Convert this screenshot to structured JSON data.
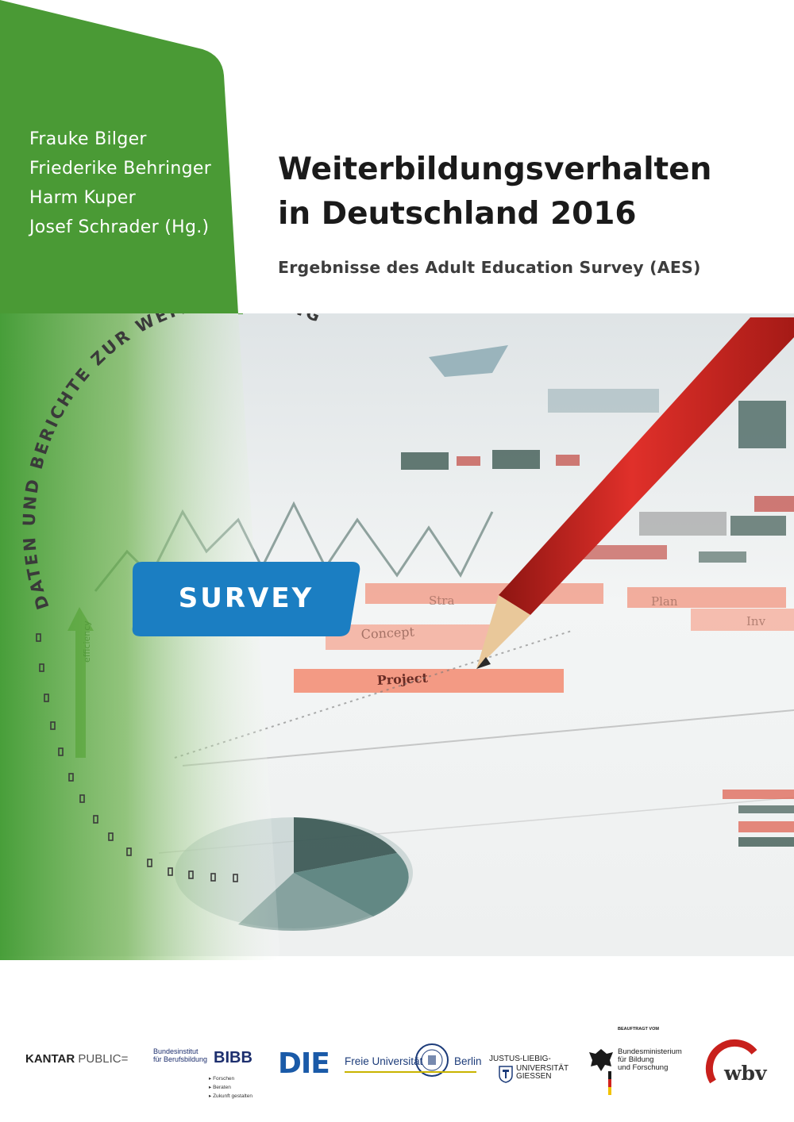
{
  "cover": {
    "authors": [
      "Frauke Bilger",
      "Friederike Behringer",
      "Harm Kuper",
      "Josef Schrader (Hg.)"
    ],
    "title_line1": "Weiterbildungsverhalten",
    "title_line2": "in Deutschland 2016",
    "subtitle": "Ergebnisse des Adult Education Survey (AES)",
    "series_arc_text": "DATEN UND BERICHTE ZUR WEITERBILDUNG",
    "badge": "SURVEY",
    "photo_labels": [
      "Concept",
      "Project",
      "Stra",
      "Plan",
      "Inv",
      "efficiency"
    ]
  },
  "colors": {
    "green": "#4a9a35",
    "blue_badge": "#1b7ec2",
    "pencil_red": "#d0231f"
  },
  "logos": {
    "kantar_bold": "KANTAR",
    "kantar_light": "PUBLIC=",
    "bibb_line1": "Bundesinstitut",
    "bibb_line2": "für Berufsbildung",
    "bibb_big": "BIBB",
    "bibb_tag1": "▸ Forschen",
    "bibb_tag2": "▸ Beraten",
    "bibb_tag3": "▸ Zukunft gestalten",
    "die": "DIE",
    "fu_left": "Freie Universität",
    "fu_right": "Berlin",
    "jlu_line1": "JUSTUS-LIEBIG-",
    "jlu_line2": "UNIVERSITÄT",
    "jlu_line3": "GIESSEN",
    "bmbf_top": "BEAUFTRAGT VOM",
    "bmbf_line1": "Bundesministerium",
    "bmbf_line2": "für Bildung",
    "bmbf_line3": "und Forschung",
    "wbv": "wbv"
  }
}
